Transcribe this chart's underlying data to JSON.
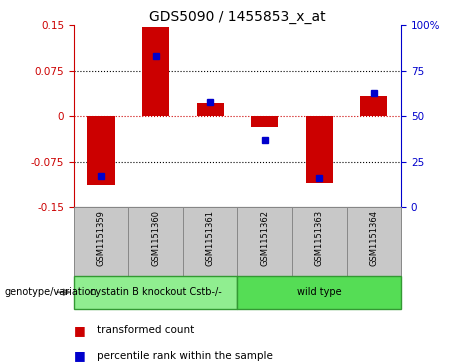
{
  "title": "GDS5090 / 1455853_x_at",
  "samples": [
    "GSM1151359",
    "GSM1151360",
    "GSM1151361",
    "GSM1151362",
    "GSM1151363",
    "GSM1151364"
  ],
  "transformed_counts": [
    -0.113,
    0.148,
    0.022,
    -0.018,
    -0.11,
    0.033
  ],
  "percentile_ranks": [
    17,
    83,
    58,
    37,
    16,
    63
  ],
  "ylim_left": [
    -0.15,
    0.15
  ],
  "ylim_right": [
    0,
    100
  ],
  "yticks_left": [
    -0.15,
    -0.075,
    0,
    0.075,
    0.15
  ],
  "yticks_right": [
    0,
    25,
    50,
    75,
    100
  ],
  "hlines_dotted": [
    0.075,
    -0.075
  ],
  "hline_zero_color": "#cc0000",
  "bar_color": "#cc0000",
  "dot_color": "#0000cc",
  "genotype_groups": [
    {
      "label": "cystatin B knockout Cstb-/-",
      "n_samples": 3,
      "color": "#90ee90"
    },
    {
      "label": "wild type",
      "n_samples": 3,
      "color": "#55dd55"
    }
  ],
  "genotype_label": "genotype/variation",
  "legend_red": "transformed count",
  "legend_blue": "percentile rank within the sample",
  "background_sample_box": "#c8c8c8",
  "sample_box_edge": "#888888",
  "geno_box_edge": "#339933",
  "zero_line_color": "#cc0000",
  "grid_color": "#000000",
  "title_fontsize": 10,
  "tick_fontsize": 7.5,
  "sample_fontsize": 6,
  "geno_fontsize": 7,
  "legend_fontsize": 7.5,
  "bar_width": 0.5,
  "dot_markersize": 4
}
